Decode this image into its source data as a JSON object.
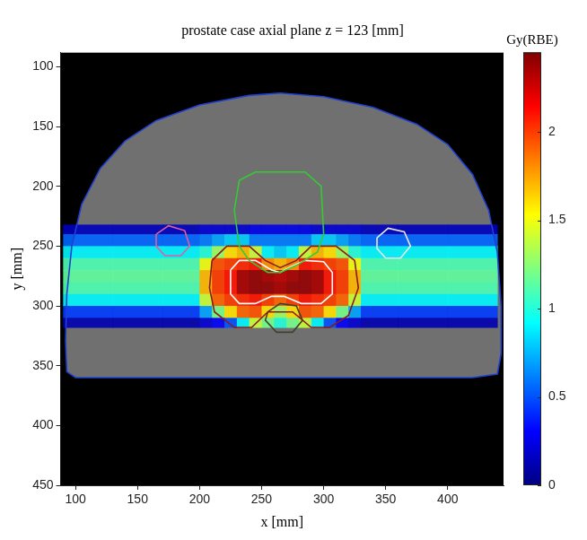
{
  "chart_data": {
    "type": "heatmap",
    "title": "prostate case axial plane z = 123 [mm]",
    "x_label": "x [mm]",
    "y_label": "y [mm]",
    "xlim": [
      88,
      445
    ],
    "xticks": [
      100,
      150,
      200,
      250,
      300,
      350,
      400
    ],
    "ylim": [
      450,
      88
    ],
    "yticks": [
      100,
      150,
      200,
      250,
      300,
      350,
      400,
      450
    ],
    "grid": false,
    "x_edges": [
      90,
      130,
      170,
      200,
      210,
      220,
      230,
      240,
      250,
      260,
      270,
      280,
      290,
      300,
      310,
      320,
      330,
      360,
      400,
      440
    ],
    "y_edges": [
      232,
      240,
      250,
      260,
      270,
      280,
      290,
      300,
      310,
      318
    ],
    "cells": [
      [
        0.15,
        0.15,
        0.15,
        0.2,
        0.2,
        0.2,
        0.2,
        0.25,
        0.25,
        0.25,
        0.25,
        0.25,
        0.2,
        0.2,
        0.2,
        0.2,
        0.15,
        0.15,
        0.15
      ],
      [
        0.55,
        0.55,
        0.55,
        0.6,
        0.7,
        0.8,
        0.8,
        0.6,
        0.6,
        0.6,
        0.6,
        0.6,
        0.8,
        0.8,
        0.7,
        0.6,
        0.55,
        0.55,
        0.55
      ],
      [
        0.9,
        0.9,
        0.9,
        1.0,
        1.3,
        1.6,
        1.7,
        1.4,
        0.9,
        0.8,
        0.9,
        1.4,
        1.7,
        1.6,
        1.3,
        1.0,
        0.9,
        0.9,
        0.9
      ],
      [
        1.1,
        1.1,
        1.1,
        1.5,
        1.95,
        2.0,
        2.05,
        2.1,
        1.8,
        1.7,
        1.8,
        2.1,
        2.05,
        2.0,
        1.95,
        1.5,
        1.1,
        1.1,
        1.1
      ],
      [
        1.15,
        1.15,
        1.15,
        1.7,
        2.0,
        2.1,
        2.35,
        2.4,
        2.35,
        2.3,
        2.35,
        2.4,
        2.35,
        2.1,
        2.0,
        1.7,
        1.15,
        1.15,
        1.15
      ],
      [
        1.1,
        1.1,
        1.1,
        1.7,
        2.0,
        2.1,
        2.35,
        2.4,
        2.4,
        2.35,
        2.4,
        2.4,
        2.35,
        2.1,
        2.0,
        1.7,
        1.1,
        1.1,
        1.1
      ],
      [
        0.9,
        0.9,
        0.9,
        1.4,
        1.9,
        2.0,
        2.05,
        2.1,
        2.0,
        1.9,
        2.0,
        2.1,
        2.05,
        2.0,
        1.9,
        1.4,
        0.9,
        0.9,
        0.9
      ],
      [
        0.45,
        0.45,
        0.45,
        0.7,
        1.2,
        1.6,
        1.9,
        1.95,
        1.6,
        1.3,
        1.6,
        1.95,
        1.9,
        1.6,
        1.2,
        0.7,
        0.45,
        0.45,
        0.45
      ],
      [
        0.12,
        0.12,
        0.12,
        0.2,
        0.3,
        0.5,
        0.9,
        1.4,
        1.2,
        1.0,
        1.2,
        1.4,
        0.9,
        0.5,
        0.3,
        0.2,
        0.12,
        0.12,
        0.12
      ]
    ],
    "colorbar": {
      "title": "Gy(RBE)",
      "lim": [
        0,
        2.45
      ],
      "ticks": [
        0,
        0.5,
        1,
        1.5,
        2
      ]
    },
    "contours": [
      {
        "color": "#2040d0",
        "x": [
          92,
          93,
          97,
          105,
          120,
          140,
          165,
          200,
          240,
          265,
          300,
          340,
          375,
          400,
          420,
          433,
          440,
          443,
          443,
          440,
          420,
          100,
          93
        ],
        "y": [
          330,
          290,
          250,
          215,
          185,
          162,
          145,
          132,
          124,
          122,
          125,
          134,
          148,
          165,
          190,
          220,
          255,
          300,
          340,
          357,
          360,
          360,
          355
        ]
      },
      {
        "color": "#33cc33",
        "x": [
          232,
          245,
          285,
          298,
          300,
          295,
          280,
          265,
          255,
          240,
          232,
          228
        ],
        "y": [
          195,
          188,
          188,
          200,
          240,
          255,
          265,
          272,
          272,
          262,
          250,
          220
        ]
      },
      {
        "color": "#8b1a1a",
        "x": [
          210,
          222,
          240,
          253,
          265,
          278,
          290,
          310,
          325,
          328,
          320,
          305,
          290,
          275,
          255,
          242,
          228,
          212,
          208
        ],
        "y": [
          262,
          250,
          250,
          262,
          268,
          262,
          250,
          250,
          262,
          285,
          308,
          318,
          318,
          305,
          305,
          318,
          318,
          305,
          285
        ]
      },
      {
        "color": "#ffffff",
        "x": [
          225,
          232,
          245,
          258,
          265,
          272,
          285,
          300,
          307,
          307,
          298,
          282,
          268,
          258,
          245,
          232,
          225
        ],
        "y": [
          270,
          262,
          262,
          270,
          272,
          268,
          262,
          263,
          272,
          290,
          298,
          298,
          292,
          292,
          298,
          298,
          290
        ]
      },
      {
        "color": "#404030",
        "x": [
          255,
          265,
          278,
          283,
          275,
          262,
          253
        ],
        "y": [
          305,
          298,
          300,
          312,
          322,
          322,
          312
        ]
      },
      {
        "color": "#e0609a",
        "x": [
          165,
          175,
          188,
          192,
          185,
          172,
          165
        ],
        "y": [
          240,
          233,
          237,
          250,
          258,
          258,
          250
        ]
      },
      {
        "color": "#e8e8e8",
        "x": [
          343,
          352,
          365,
          370,
          362,
          350,
          343
        ],
        "y": [
          243,
          235,
          238,
          250,
          260,
          260,
          252
        ]
      }
    ]
  }
}
